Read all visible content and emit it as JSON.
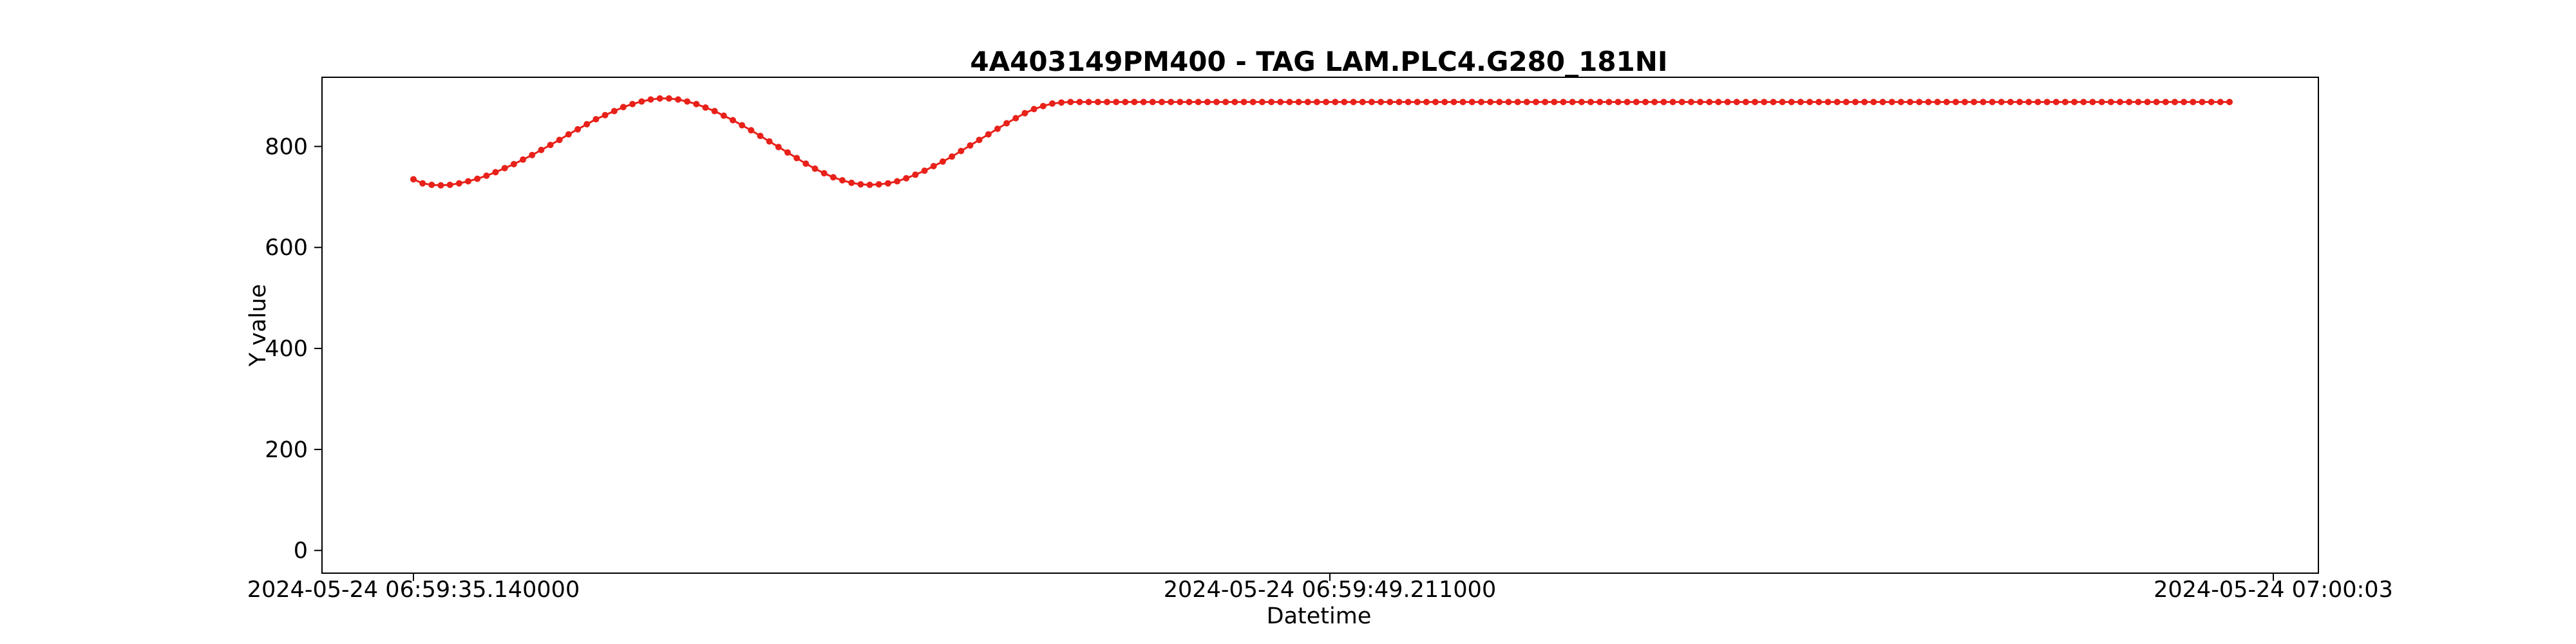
{
  "chart_data": {
    "type": "line",
    "title": "4A403149PM400 - TAG LAM.PLC4.G280_181NI",
    "xlabel": "Datetime",
    "ylabel": "Y value",
    "x_tick_labels": [
      "2024-05-24 06:59:35.140000",
      "2024-05-24 06:59:49.211000",
      "2024-05-24 07:00:03"
    ],
    "y_ticks": [
      0,
      200,
      400,
      600,
      800
    ],
    "ylim": [
      -45,
      937
    ],
    "grid": false,
    "legend": "none",
    "series": [
      {
        "color": "#e8211a",
        "values": [
          735,
          727,
          724,
          723,
          724,
          727,
          731,
          736,
          742,
          749,
          757,
          765,
          774,
          783,
          793,
          803,
          813,
          824,
          834,
          844,
          854,
          862,
          870,
          878,
          884,
          889,
          893,
          895,
          895,
          893,
          889,
          884,
          877,
          870,
          861,
          852,
          842,
          832,
          821,
          810,
          799,
          788,
          777,
          766,
          756,
          747,
          739,
          733,
          728,
          725,
          724,
          725,
          727,
          731,
          737,
          744,
          752,
          761,
          770,
          780,
          791,
          802,
          813,
          824,
          835,
          846,
          856,
          866,
          874,
          880,
          885,
          887,
          888,
          888,
          888,
          888,
          888,
          888,
          888,
          888,
          888,
          888,
          888,
          888,
          888,
          888,
          888,
          888,
          888,
          888,
          888,
          888,
          888,
          888,
          888,
          888,
          888,
          888,
          888,
          888,
          888,
          888,
          888,
          888,
          888,
          888,
          888,
          888,
          888,
          888,
          888,
          888,
          888,
          888,
          888,
          888,
          888,
          888,
          888,
          888,
          888,
          888,
          888,
          888,
          888,
          888,
          888,
          888,
          888,
          888,
          888,
          888,
          888,
          888,
          888,
          888,
          888,
          888,
          888,
          888,
          888,
          888,
          888,
          888,
          888,
          888,
          888,
          888,
          888,
          888,
          888,
          888,
          888,
          888,
          888,
          888,
          888,
          888,
          888,
          888,
          888,
          888,
          888,
          888,
          888,
          888,
          888,
          888,
          888,
          888,
          888,
          888,
          888,
          888,
          888,
          888,
          888,
          888,
          888,
          888,
          888,
          888,
          888,
          888,
          888,
          888,
          888,
          888,
          888,
          888,
          888,
          888,
          888,
          888,
          888,
          888,
          888,
          888,
          888,
          888
        ]
      }
    ]
  }
}
